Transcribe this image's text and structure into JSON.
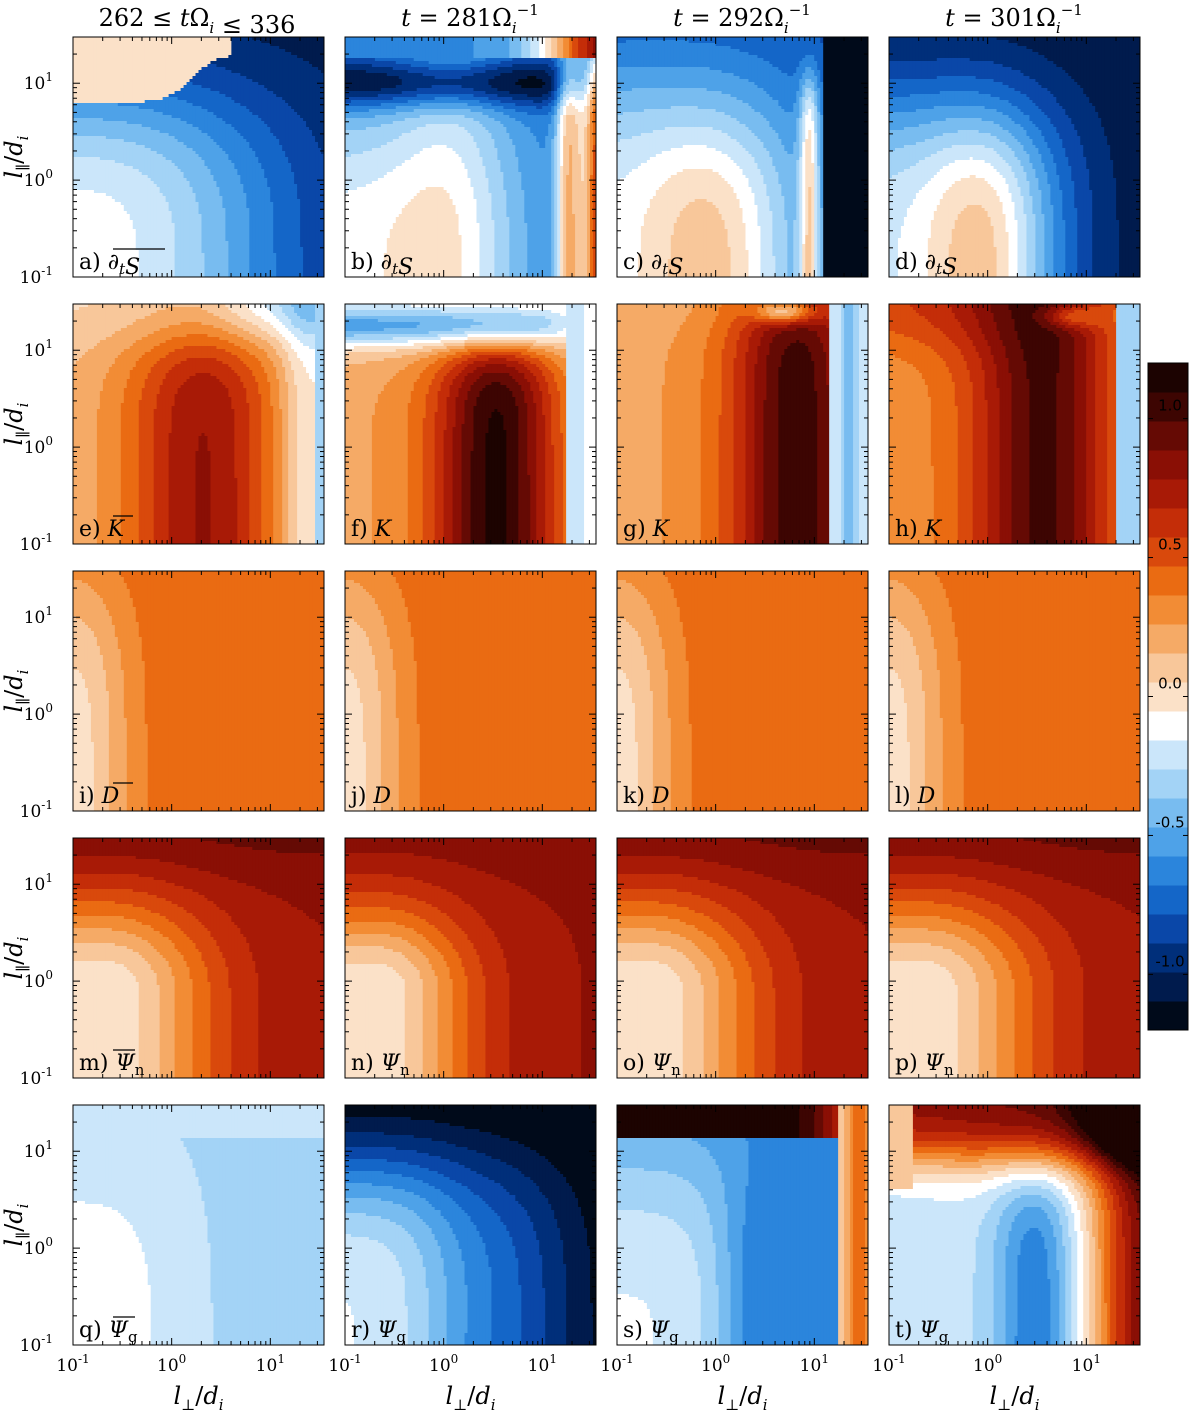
{
  "chart_data": {
    "type": "heatmap",
    "column_titles": [
      "262 ≤ tΩ_i ≤ 336",
      "t = 281Ω_i^-1",
      "t = 292Ω_i^-1",
      "t = 301Ω_i^-1"
    ],
    "xlabel": "l⊥/d_i",
    "ylabel": "l∥/d_i",
    "x_scale": "log",
    "y_scale": "log",
    "xlim": [
      0.1,
      35
    ],
    "ylim": [
      0.1,
      30
    ],
    "x_ticks": [
      "10^-1",
      "10^0",
      "10^1"
    ],
    "y_ticks": [
      "10^-1",
      "10^0",
      "10^1"
    ],
    "panels": [
      {
        "label": "a)",
        "quantity": "∂tS (time-averaged)",
        "bar": true
      },
      {
        "label": "b)",
        "quantity": "∂tS"
      },
      {
        "label": "c)",
        "quantity": "∂tS"
      },
      {
        "label": "d)",
        "quantity": "∂tS"
      },
      {
        "label": "e)",
        "quantity": "K (time-averaged)",
        "bar": true
      },
      {
        "label": "f)",
        "quantity": "K"
      },
      {
        "label": "g)",
        "quantity": "K"
      },
      {
        "label": "h)",
        "quantity": "K"
      },
      {
        "label": "i)",
        "quantity": "D (time-averaged)",
        "bar": true
      },
      {
        "label": "j)",
        "quantity": "D"
      },
      {
        "label": "k)",
        "quantity": "D"
      },
      {
        "label": "l)",
        "quantity": "D"
      },
      {
        "label": "m)",
        "quantity": "Ψn (time-averaged)",
        "bar": true
      },
      {
        "label": "n)",
        "quantity": "Ψn"
      },
      {
        "label": "o)",
        "quantity": "Ψn"
      },
      {
        "label": "p)",
        "quantity": "Ψn"
      },
      {
        "label": "q)",
        "quantity": "Ψg (time-averaged)",
        "bar": true
      },
      {
        "label": "r)",
        "quantity": "Ψg"
      },
      {
        "label": "s)",
        "quantity": "Ψg"
      },
      {
        "label": "t)",
        "quantity": "Ψg"
      }
    ],
    "colorbar": {
      "range": [
        -1.2,
        1.2
      ],
      "ticks": [
        "1.0",
        "0.5",
        "0.0",
        "-0.5",
        "-1.0"
      ],
      "tick_values": [
        1.0,
        0.5,
        0.0,
        -0.5,
        -1.0
      ],
      "palette": "blue-white-red diverging",
      "colors": [
        "#000a1a",
        "#001b4d",
        "#002f7a",
        "#0a47a8",
        "#1466c8",
        "#2b85dc",
        "#4ea2e8",
        "#78bcf0",
        "#a3d3f6",
        "#cbe6fa",
        "#ffffff",
        "#fbe1c8",
        "#f8c79a",
        "#f5aa66",
        "#f28c35",
        "#ea6b12",
        "#d9490c",
        "#c42d08",
        "#a81a06",
        "#8a0f05",
        "#650a04",
        "#3d0502",
        "#1c0301"
      ]
    }
  }
}
